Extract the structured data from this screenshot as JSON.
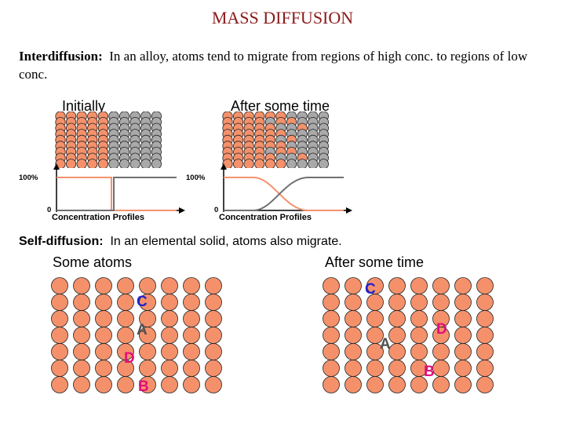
{
  "title": "MASS DIFFUSION",
  "interdiffusion": {
    "heading": "Interdiffusion:",
    "text": "In an alloy, atoms tend to migrate from regions of high conc. to regions of low conc."
  },
  "panels": {
    "initially": "Initially",
    "after": "After some time"
  },
  "profiles": {
    "y_top": "100%",
    "y_bottom": "0",
    "caption": "Concentration Profiles"
  },
  "selfdiffusion": {
    "heading": "Self-diffusion:",
    "text": "In an elemental solid, atoms also migrate."
  },
  "self_panels": {
    "left": "Some atoms",
    "right": "After some time"
  },
  "atom_labels": {
    "left": {
      "C": "C",
      "A": "A",
      "D": "D",
      "B": "B"
    },
    "right": {
      "C": "C",
      "A": "A",
      "D": "D",
      "B": "B"
    }
  },
  "colors": {
    "copper": "#f4916b",
    "nickel": "#a9a9a9",
    "label_blue": "#2222cc",
    "label_magenta": "#e0107a",
    "label_gray": "#505050",
    "title": "#8b1a1a"
  }
}
